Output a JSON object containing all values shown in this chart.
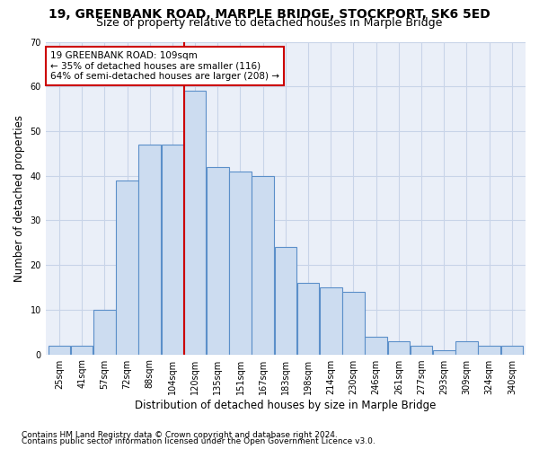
{
  "title": "19, GREENBANK ROAD, MARPLE BRIDGE, STOCKPORT, SK6 5ED",
  "subtitle": "Size of property relative to detached houses in Marple Bridge",
  "xlabel": "Distribution of detached houses by size in Marple Bridge",
  "ylabel": "Number of detached properties",
  "categories": [
    "25sqm",
    "41sqm",
    "57sqm",
    "72sqm",
    "88sqm",
    "104sqm",
    "120sqm",
    "135sqm",
    "151sqm",
    "167sqm",
    "183sqm",
    "198sqm",
    "214sqm",
    "230sqm",
    "246sqm",
    "261sqm",
    "277sqm",
    "293sqm",
    "309sqm",
    "324sqm",
    "340sqm"
  ],
  "values": [
    2,
    2,
    10,
    39,
    47,
    47,
    59,
    42,
    41,
    40,
    24,
    16,
    15,
    14,
    4,
    3,
    2,
    1,
    3,
    2,
    2
  ],
  "bar_color": "#ccdcf0",
  "bar_edgecolor": "#5b8fc9",
  "vline_color": "#cc0000",
  "annotation_line1": "19 GREENBANK ROAD: 109sqm",
  "annotation_line2": "← 35% of detached houses are smaller (116)",
  "annotation_line3": "64% of semi-detached houses are larger (208) →",
  "annotation_box_color": "white",
  "annotation_box_edgecolor": "#cc0000",
  "ylim": [
    0,
    70
  ],
  "yticks": [
    0,
    10,
    20,
    30,
    40,
    50,
    60,
    70
  ],
  "grid_color": "#c8d4e8",
  "bg_color": "#eaeff8",
  "footer1": "Contains HM Land Registry data © Crown copyright and database right 2024.",
  "footer2": "Contains public sector information licensed under the Open Government Licence v3.0.",
  "title_fontsize": 10,
  "subtitle_fontsize": 9,
  "xlabel_fontsize": 8.5,
  "ylabel_fontsize": 8.5,
  "tick_fontsize": 7,
  "annotation_fontsize": 7.5,
  "footer_fontsize": 6.5
}
